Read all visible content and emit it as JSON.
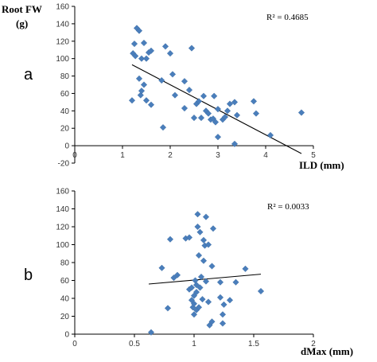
{
  "y_title_line1": "Root FW",
  "y_title_line2": "(g)",
  "chart_data": [
    {
      "type": "scatter",
      "panel": "a",
      "xlabel": "ILD (mm)",
      "ylabel": "Root FW (g)",
      "xlim": [
        0,
        5
      ],
      "ylim": [
        -20,
        160
      ],
      "xticks": [
        0,
        1,
        2,
        3,
        4,
        5
      ],
      "yticks": [
        -20,
        0,
        20,
        40,
        60,
        80,
        100,
        120,
        140,
        160
      ],
      "r2": "R² = 0.4685",
      "trendline": {
        "x": [
          1.2,
          4.75
        ],
        "y": [
          93,
          -9
        ]
      },
      "points": [
        [
          1.22,
          106
        ],
        [
          1.25,
          117
        ],
        [
          1.27,
          103
        ],
        [
          1.3,
          135
        ],
        [
          1.35,
          132
        ],
        [
          1.4,
          100
        ],
        [
          1.45,
          118
        ],
        [
          1.5,
          100
        ],
        [
          1.55,
          107
        ],
        [
          1.6,
          109
        ],
        [
          1.2,
          52
        ],
        [
          1.35,
          77
        ],
        [
          1.38,
          58
        ],
        [
          1.4,
          63
        ],
        [
          1.45,
          70
        ],
        [
          1.5,
          52
        ],
        [
          1.6,
          47
        ],
        [
          1.82,
          75
        ],
        [
          1.85,
          21
        ],
        [
          1.9,
          114
        ],
        [
          2.0,
          106
        ],
        [
          2.05,
          82
        ],
        [
          2.1,
          58
        ],
        [
          2.3,
          43
        ],
        [
          2.3,
          74
        ],
        [
          2.4,
          64
        ],
        [
          2.45,
          112
        ],
        [
          2.5,
          32
        ],
        [
          2.55,
          48
        ],
        [
          2.6,
          51
        ],
        [
          2.65,
          32
        ],
        [
          2.7,
          57
        ],
        [
          2.75,
          40
        ],
        [
          2.8,
          37
        ],
        [
          2.85,
          30
        ],
        [
          2.9,
          31
        ],
        [
          2.92,
          57
        ],
        [
          2.95,
          27
        ],
        [
          3.0,
          10
        ],
        [
          3.0,
          42
        ],
        [
          3.1,
          30
        ],
        [
          3.15,
          33
        ],
        [
          3.2,
          40
        ],
        [
          3.25,
          48
        ],
        [
          3.35,
          50
        ],
        [
          3.35,
          2
        ],
        [
          3.4,
          35
        ],
        [
          3.75,
          51
        ],
        [
          3.8,
          37
        ],
        [
          4.1,
          12
        ],
        [
          4.75,
          38
        ]
      ]
    },
    {
      "type": "scatter",
      "panel": "b",
      "xlabel": "dMax (mm)",
      "ylabel": "Root FW (g)",
      "xlim": [
        0,
        2
      ],
      "ylim": [
        0,
        160
      ],
      "xticks": [
        0,
        0.5,
        1,
        1.5,
        2
      ],
      "yticks": [
        0,
        20,
        40,
        60,
        80,
        100,
        120,
        140,
        160
      ],
      "r2": "R² = 0.0033",
      "trendline": {
        "x": [
          0.62,
          1.56
        ],
        "y": [
          56,
          67
        ]
      },
      "points": [
        [
          0.64,
          2
        ],
        [
          0.73,
          74
        ],
        [
          0.78,
          29
        ],
        [
          0.8,
          106
        ],
        [
          0.83,
          63
        ],
        [
          0.86,
          66
        ],
        [
          0.93,
          107
        ],
        [
          0.96,
          108
        ],
        [
          0.96,
          50
        ],
        [
          0.98,
          52
        ],
        [
          0.98,
          38
        ],
        [
          0.99,
          30
        ],
        [
          1.0,
          34
        ],
        [
          1.0,
          43
        ],
        [
          1.0,
          22
        ],
        [
          1.01,
          60
        ],
        [
          1.02,
          55
        ],
        [
          1.02,
          47
        ],
        [
          1.02,
          27
        ],
        [
          1.03,
          134
        ],
        [
          1.03,
          120
        ],
        [
          1.04,
          88
        ],
        [
          1.04,
          30
        ],
        [
          1.05,
          52
        ],
        [
          1.05,
          114
        ],
        [
          1.06,
          64
        ],
        [
          1.07,
          39
        ],
        [
          1.08,
          105
        ],
        [
          1.08,
          82
        ],
        [
          1.09,
          99
        ],
        [
          1.1,
          131
        ],
        [
          1.1,
          59
        ],
        [
          1.12,
          100
        ],
        [
          1.12,
          36
        ],
        [
          1.13,
          10
        ],
        [
          1.15,
          14
        ],
        [
          1.15,
          76
        ],
        [
          1.16,
          118
        ],
        [
          1.22,
          58
        ],
        [
          1.22,
          41
        ],
        [
          1.24,
          22
        ],
        [
          1.24,
          12
        ],
        [
          1.25,
          33
        ],
        [
          1.35,
          58
        ],
        [
          1.43,
          73
        ],
        [
          1.56,
          48
        ],
        [
          1.3,
          38
        ]
      ]
    }
  ]
}
